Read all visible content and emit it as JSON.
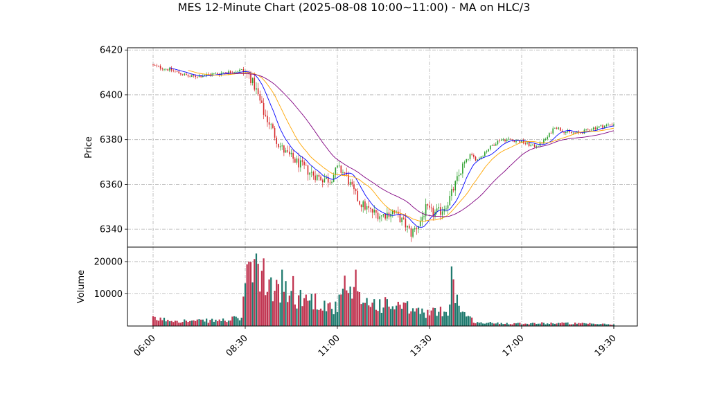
{
  "chart_data": {
    "type": "candlestick",
    "title": "MES 12-Minute Chart (2025-08-08 10:00~11:00) - MA on HLC/3",
    "price_panel": {
      "ylabel": "Price",
      "ylim": [
        6332,
        6421
      ],
      "yticks": [
        6340,
        6360,
        6380,
        6400,
        6420
      ],
      "grid": true
    },
    "volume_panel": {
      "ylabel": "Volume",
      "ylim": [
        0,
        24500
      ],
      "yticks": [
        10000,
        20000
      ],
      "grid": true
    },
    "x_ticks": [
      "06:00",
      "08:30",
      "11:00",
      "13:30",
      "17:00",
      "19:30"
    ],
    "colors": {
      "up": "#2ca02c",
      "down": "#d62728",
      "ma_fast": "#0000ff",
      "ma_mid": "#ffa500",
      "ma_slow": "#800080",
      "vol_up": "#1f7a6e",
      "vol_down": "#c0334f"
    },
    "close_keypoints": [
      [
        0,
        6413
      ],
      [
        10,
        6411
      ],
      [
        20,
        6408
      ],
      [
        30,
        6409
      ],
      [
        40,
        6410
      ],
      [
        48,
        6411
      ],
      [
        52,
        6409
      ],
      [
        56,
        6402
      ],
      [
        60,
        6392
      ],
      [
        64,
        6386
      ],
      [
        68,
        6378
      ],
      [
        72,
        6374
      ],
      [
        78,
        6370
      ],
      [
        84,
        6366
      ],
      [
        90,
        6363
      ],
      [
        96,
        6362
      ],
      [
        100,
        6367
      ],
      [
        104,
        6365
      ],
      [
        108,
        6358
      ],
      [
        112,
        6352
      ],
      [
        118,
        6348
      ],
      [
        124,
        6346
      ],
      [
        130,
        6348
      ],
      [
        136,
        6343
      ],
      [
        140,
        6338
      ],
      [
        144,
        6342
      ],
      [
        148,
        6349
      ],
      [
        152,
        6347
      ],
      [
        156,
        6348
      ],
      [
        160,
        6352
      ],
      [
        164,
        6360
      ],
      [
        168,
        6368
      ],
      [
        172,
        6373
      ],
      [
        176,
        6371
      ],
      [
        182,
        6376
      ],
      [
        188,
        6380
      ],
      [
        194,
        6380
      ],
      [
        200,
        6379
      ],
      [
        206,
        6377
      ],
      [
        210,
        6378
      ],
      [
        214,
        6381
      ],
      [
        218,
        6386
      ],
      [
        222,
        6384
      ],
      [
        226,
        6383
      ],
      [
        232,
        6383
      ],
      [
        238,
        6385
      ],
      [
        244,
        6386
      ],
      [
        250,
        6387
      ]
    ],
    "volume_keypoints": [
      [
        0,
        2200
      ],
      [
        20,
        1500
      ],
      [
        40,
        1800
      ],
      [
        48,
        2600
      ],
      [
        50,
        14000
      ],
      [
        54,
        15000
      ],
      [
        58,
        16000
      ],
      [
        62,
        13000
      ],
      [
        66,
        11000
      ],
      [
        72,
        10000
      ],
      [
        78,
        9000
      ],
      [
        84,
        8500
      ],
      [
        90,
        7500
      ],
      [
        96,
        6000
      ],
      [
        100,
        5500
      ],
      [
        104,
        12000
      ],
      [
        108,
        9000
      ],
      [
        114,
        8000
      ],
      [
        120,
        7000
      ],
      [
        126,
        6500
      ],
      [
        132,
        6000
      ],
      [
        138,
        5500
      ],
      [
        144,
        4500
      ],
      [
        150,
        4000
      ],
      [
        156,
        4500
      ],
      [
        160,
        5000
      ],
      [
        164,
        9000
      ],
      [
        170,
        3000
      ],
      [
        176,
        1000
      ],
      [
        200,
        800
      ],
      [
        220,
        900
      ],
      [
        250,
        500
      ]
    ],
    "volume_spikes": [
      [
        52,
        20000
      ],
      [
        56,
        22500
      ],
      [
        60,
        21000
      ],
      [
        70,
        17500
      ],
      [
        76,
        15500
      ],
      [
        110,
        17500
      ],
      [
        162,
        18500
      ],
      [
        163,
        14500
      ]
    ]
  }
}
